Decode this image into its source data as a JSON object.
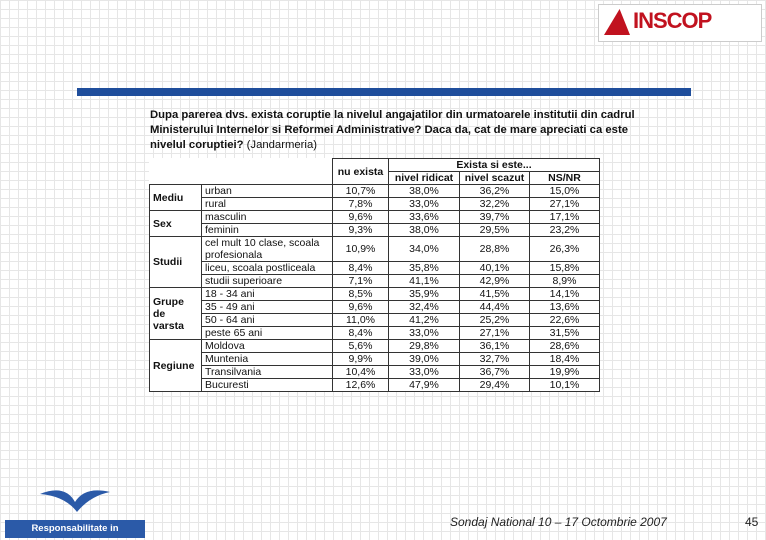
{
  "logo": {
    "text": "INSCOP"
  },
  "question": "Dupa parerea dvs. exista coruptie la nivelul angajatilor din urmatoarele institutii din cadrul Ministerului Internelor si Reformei Administrative? Daca da, cat de mare apreciati ca este nivelul coruptiei?",
  "question_note": "(Jandarmeria)",
  "table": {
    "header": {
      "nu_exista": "nu exista",
      "group": "Exista si este...",
      "columns": [
        "nivel ridicat",
        "nivel scazut",
        "NS/NR"
      ]
    },
    "groups": [
      {
        "label": "Mediu",
        "rows": [
          {
            "label": "urban",
            "values": [
              "10,7%",
              "38,0%",
              "36,2%",
              "15,0%"
            ]
          },
          {
            "label": "rural",
            "values": [
              "7,8%",
              "33,0%",
              "32,2%",
              "27,1%"
            ]
          }
        ]
      },
      {
        "label": "Sex",
        "rows": [
          {
            "label": "masculin",
            "values": [
              "9,6%",
              "33,6%",
              "39,7%",
              "17,1%"
            ]
          },
          {
            "label": "feminin",
            "values": [
              "9,3%",
              "38,0%",
              "29,5%",
              "23,2%"
            ]
          }
        ]
      },
      {
        "label": "Studii",
        "rows": [
          {
            "label": "cel mult 10 clase, scoala profesionala",
            "values": [
              "10,9%",
              "34,0%",
              "28,8%",
              "26,3%"
            ]
          },
          {
            "label": "liceu, scoala postliceala",
            "values": [
              "8,4%",
              "35,8%",
              "40,1%",
              "15,8%"
            ]
          },
          {
            "label": "studii superioare",
            "values": [
              "7,1%",
              "41,1%",
              "42,9%",
              "8,9%"
            ]
          }
        ]
      },
      {
        "label": "Grupe de varsta",
        "rows": [
          {
            "label": "18 - 34 ani",
            "values": [
              "8,5%",
              "35,9%",
              "41,5%",
              "14,1%"
            ]
          },
          {
            "label": "35 - 49 ani",
            "values": [
              "9,6%",
              "32,4%",
              "44,4%",
              "13,6%"
            ]
          },
          {
            "label": "50 - 64 ani",
            "values": [
              "11,0%",
              "41,2%",
              "25,2%",
              "22,6%"
            ]
          },
          {
            "label": "peste 65 ani",
            "values": [
              "8,4%",
              "33,0%",
              "27,1%",
              "31,5%"
            ]
          }
        ]
      },
      {
        "label": "Regiune",
        "rows": [
          {
            "label": "Moldova",
            "values": [
              "5,6%",
              "29,8%",
              "36,1%",
              "28,6%"
            ]
          },
          {
            "label": "Muntenia",
            "values": [
              "9,9%",
              "39,0%",
              "32,7%",
              "18,4%"
            ]
          },
          {
            "label": "Transilvania",
            "values": [
              "10,4%",
              "33,0%",
              "36,7%",
              "19,9%"
            ]
          },
          {
            "label": "Bucuresti",
            "values": [
              "12,6%",
              "47,9%",
              "29,4%",
              "10,1%"
            ]
          }
        ]
      }
    ]
  },
  "footer": {
    "logo_text": "Responsabilitate in Democratie",
    "survey": "Sondaj National 10 – 17 Octombrie 2007",
    "page": "45"
  }
}
